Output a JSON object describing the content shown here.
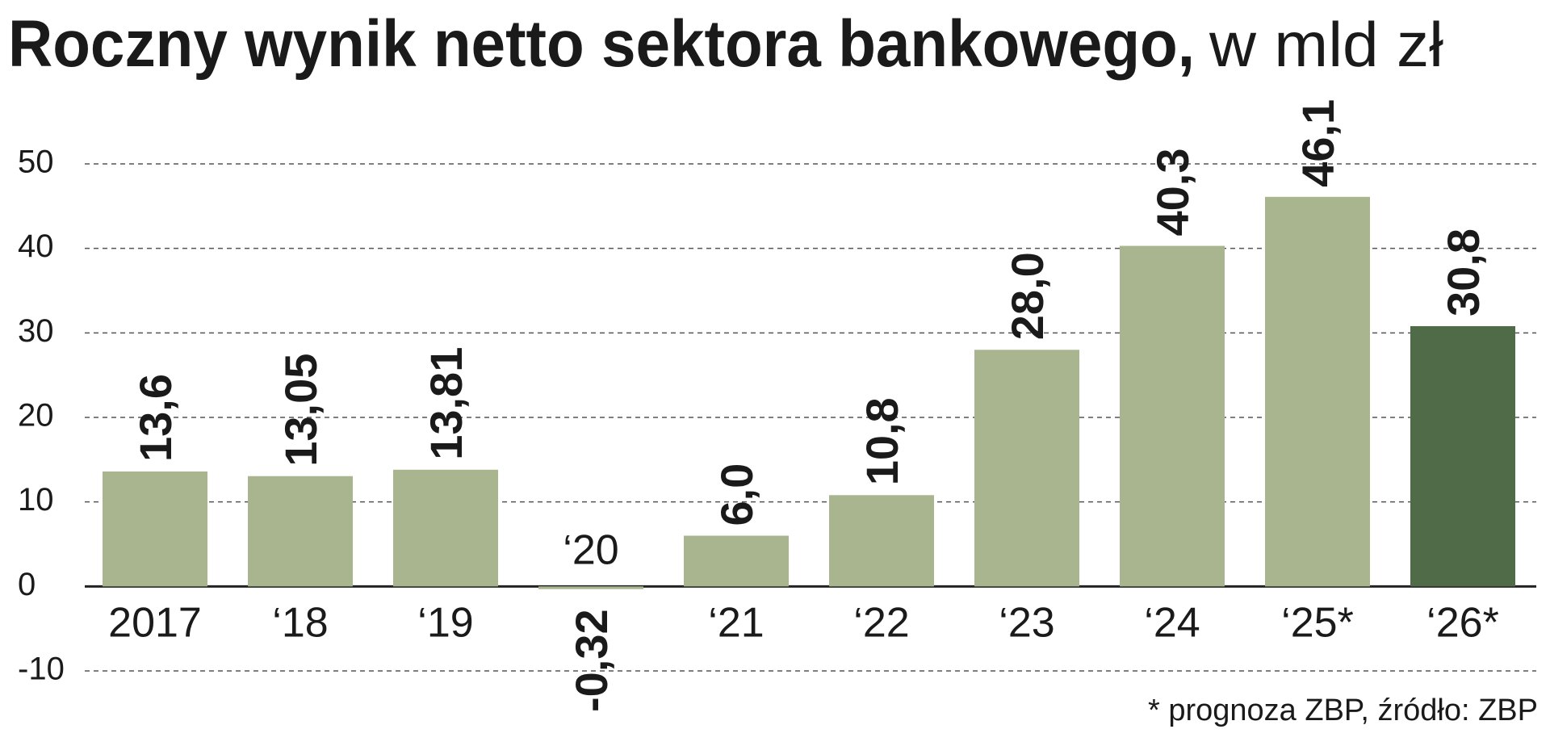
{
  "chart_data": {
    "type": "bar",
    "title": "Roczny wynik netto sektora bankowego,",
    "subtitle": "w mld zł",
    "categories": [
      "2017",
      "‘18",
      "‘19",
      "‘20",
      "‘21",
      "‘22",
      "‘23",
      "‘24",
      "‘25*",
      "‘26*"
    ],
    "values": [
      13.6,
      13.05,
      13.81,
      -0.32,
      6.0,
      10.8,
      28.0,
      40.3,
      46.1,
      30.8
    ],
    "value_labels": [
      "13,6",
      "13,05",
      "13,81",
      "-0,32",
      "6,0",
      "10,8",
      "28,0",
      "40,3",
      "46,1",
      "30,8"
    ],
    "colors": [
      "#a9b58f",
      "#a9b58f",
      "#a9b58f",
      "#a9b58f",
      "#a9b58f",
      "#a9b58f",
      "#a9b58f",
      "#a9b58f",
      "#a9b58f",
      "#4f6b48"
    ],
    "ylim": [
      -10,
      50
    ],
    "yticks": [
      -10,
      0,
      10,
      20,
      30,
      40,
      50
    ],
    "grid": true,
    "note": "* prognoza ZBP, źródło: ZBP"
  }
}
